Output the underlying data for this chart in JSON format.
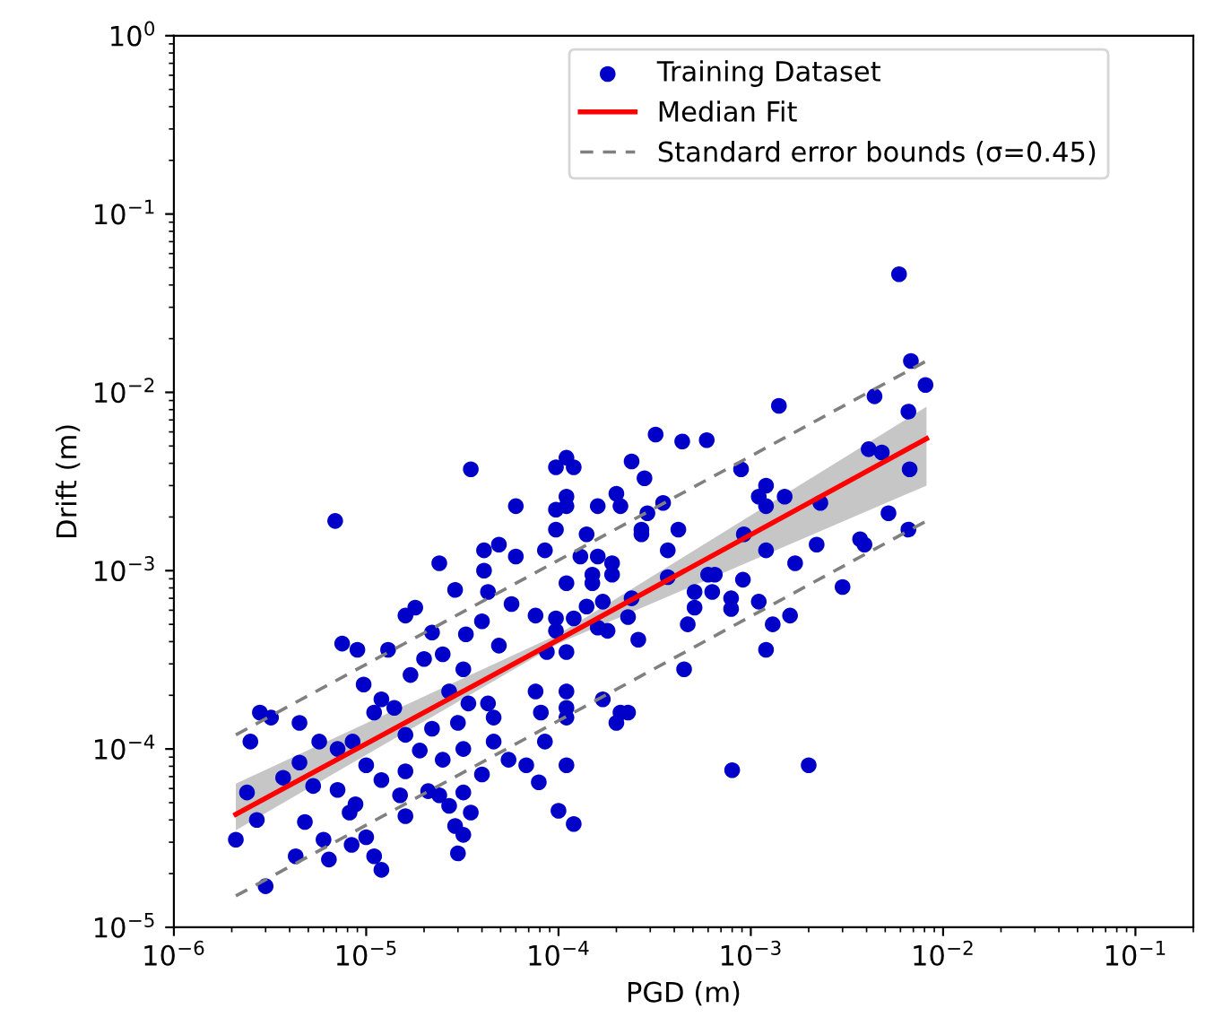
{
  "chart_data": {
    "type": "scatter",
    "xlabel": "PGD (m)",
    "ylabel": "Drift (m)",
    "log": "xy",
    "grid": false,
    "legend": "top right",
    "xlim": [
      1e-06,
      0.2
    ],
    "ylim": [
      1e-05,
      1
    ],
    "xticks": [
      {
        "value": 1e-06,
        "label": "10$^{−6}$"
      },
      {
        "value": 1e-05,
        "label": "10$^{−5}$"
      },
      {
        "value": 0.0001,
        "label": "10$^{−4}$"
      },
      {
        "value": 0.001,
        "label": "10$^{−3}$"
      },
      {
        "value": 0.01,
        "label": "10$^{−2}$"
      },
      {
        "value": 0.1,
        "label": "10$^{−1}$"
      }
    ],
    "yticks": [
      {
        "value": 1e-05,
        "label": "10$^{−5}$"
      },
      {
        "value": 0.0001,
        "label": "10$^{−4}$"
      },
      {
        "value": 0.001,
        "label": "10$^{−3}$"
      },
      {
        "value": 0.01,
        "label": "10$^{−2}$"
      },
      {
        "value": 0.1,
        "label": "10$^{−1}$"
      },
      {
        "value": 1,
        "label": "10$^{0}$"
      }
    ],
    "series": [
      {
        "name": "Training Dataset",
        "marker": "circle",
        "color": "#0000c8",
        "x": [
          3.5e-05,
          6.9e-06,
          6e-05,
          2.4e-05,
          4.1e-05,
          4.9e-05,
          6e-05,
          2.9e-05,
          4.1e-05,
          4.3e-05,
          1.6e-05,
          1.8e-05,
          5.7e-05,
          2.2e-05,
          7.5e-06,
          9e-06,
          1.3e-05,
          2e-05,
          2.5e-05,
          1.7e-05,
          3.3e-05,
          4e-05,
          4.9e-05,
          3.2e-05,
          9.7e-06,
          1.2e-05,
          1.4e-05,
          1.1e-05,
          2.7e-05,
          3.4e-05,
          4.3e-05,
          4.6e-05,
          2.8e-06,
          3.2e-06,
          4.5e-06,
          2.5e-06,
          5.7e-06,
          7.1e-06,
          8.5e-06,
          1.6e-05,
          2.2e-05,
          3e-05,
          1.9e-05,
          2.5e-05,
          3.2e-05,
          4.6e-05,
          1e-05,
          1.6e-05,
          4.5e-06,
          3.7e-06,
          5.3e-06,
          7.1e-06,
          1.2e-05,
          2.4e-06,
          2.7e-06,
          2.1e-06,
          4.8e-06,
          8.8e-06,
          8.2e-06,
          1.5e-05,
          1.6e-05,
          2.1e-05,
          2.4e-05,
          2.7e-05,
          3.2e-05,
          3.5e-05,
          2.9e-05,
          3.2e-05,
          3e-05,
          6e-06,
          8.4e-06,
          1e-05,
          1.1e-05,
          1.2e-05,
          4.3e-06,
          6.4e-06,
          3e-06,
          4e-05,
          5.5e-05,
          6.8e-05,
          0.0014,
          0.00032,
          0.00044,
          0.00059,
          0.00011,
          9.7e-05,
          0.00012,
          0.00024,
          0.00028,
          0.00089,
          0.0012,
          0.0011,
          0.0015,
          0.0012,
          0.0023,
          0.00011,
          0.0002,
          0.00021,
          0.00016,
          9.7e-05,
          0.00011,
          0.00035,
          0.00029,
          0.00027,
          0.00027,
          0.00042,
          9.7e-05,
          0.00014,
          0.00037,
          8.5e-05,
          0.00013,
          0.00016,
          0.00019,
          0.00015,
          0.00019,
          0.00011,
          0.00015,
          0.00037,
          0.00092,
          0.0012,
          0.0017,
          0.0022,
          0.0037,
          0.003,
          0.00091,
          0.0006,
          0.00065,
          0.00051,
          0.00063,
          0.00079,
          0.00079,
          0.0011,
          0.00051,
          0.00047,
          0.0013,
          0.0016,
          0.0012,
          0.00045,
          0.00023,
          0.00026,
          0.00018,
          0.00016,
          0.00012,
          9.7e-05,
          7.6e-05,
          9.7e-05,
          0.00024,
          0.00017,
          0.00014,
          0.00011,
          8.7e-05,
          7.6e-05,
          0.00011,
          0.00017,
          0.00021,
          0.00023,
          0.0002,
          0.00011,
          0.00011,
          8.1e-05,
          8.5e-05,
          0.00011,
          7.9e-05,
          0.0001,
          0.00012,
          0.0008,
          0.002,
          0.0059,
          0.0068,
          0.0081,
          0.0044,
          0.0066,
          0.0041,
          0.0048,
          0.0067,
          0.0052,
          0.0066,
          0.0039
        ],
        "values": [
          0.0037,
          0.0019,
          0.0023,
          0.0011,
          0.0013,
          0.0014,
          0.0012,
          0.00078,
          0.001,
          0.00076,
          0.00056,
          0.00062,
          0.00065,
          0.00045,
          0.00039,
          0.00036,
          0.00036,
          0.00032,
          0.00034,
          0.00026,
          0.00044,
          0.00052,
          0.00038,
          0.00028,
          0.00023,
          0.00019,
          0.00017,
          0.00016,
          0.00021,
          0.00018,
          0.00018,
          0.00015,
          0.00016,
          0.00015,
          0.00014,
          0.00011,
          0.00011,
          0.0001,
          0.00011,
          0.00012,
          0.00013,
          0.00014,
          9.8e-05,
          8.7e-05,
          0.0001,
          0.00011,
          8.1e-05,
          7.5e-05,
          8.4e-05,
          6.9e-05,
          6.2e-05,
          5.9e-05,
          6.7e-05,
          5.7e-05,
          4e-05,
          3.1e-05,
          3.9e-05,
          4.9e-05,
          4.4e-05,
          5.5e-05,
          4.2e-05,
          5.8e-05,
          5.5e-05,
          4.8e-05,
          5.7e-05,
          4.4e-05,
          3.7e-05,
          3.3e-05,
          2.6e-05,
          3.1e-05,
          2.9e-05,
          3.2e-05,
          2.5e-05,
          2.1e-05,
          2.5e-05,
          2.4e-05,
          1.7e-05,
          7.2e-05,
          8.7e-05,
          8.1e-05,
          0.0084,
          0.0058,
          0.0053,
          0.0054,
          0.0043,
          0.0038,
          0.0038,
          0.0041,
          0.0033,
          0.0037,
          0.003,
          0.0026,
          0.0026,
          0.0023,
          0.0024,
          0.0026,
          0.0027,
          0.0023,
          0.0023,
          0.0022,
          0.0023,
          0.0024,
          0.0021,
          0.0017,
          0.0016,
          0.0017,
          0.0017,
          0.0016,
          0.0013,
          0.0013,
          0.0012,
          0.0012,
          0.0011,
          0.00095,
          0.00095,
          0.00085,
          0.00085,
          0.00092,
          0.0016,
          0.0013,
          0.0011,
          0.0014,
          0.0015,
          0.00081,
          0.00089,
          0.00095,
          0.00095,
          0.00076,
          0.00076,
          0.0007,
          0.00061,
          0.00067,
          0.00062,
          0.0005,
          0.0005,
          0.00056,
          0.00036,
          0.00028,
          0.00055,
          0.00041,
          0.00046,
          0.00048,
          0.00054,
          0.00054,
          0.00056,
          0.00046,
          0.0007,
          0.00067,
          0.00063,
          0.00035,
          0.00035,
          0.00021,
          0.00021,
          0.00019,
          0.00016,
          0.00016,
          0.00014,
          0.00017,
          0.00015,
          0.00016,
          0.00011,
          8.1e-05,
          6.5e-05,
          4.5e-05,
          3.8e-05,
          7.6e-05,
          8.1e-05,
          0.046,
          0.015,
          0.011,
          0.0095,
          0.0078,
          0.0048,
          0.0046,
          0.0037,
          0.0021,
          0.0017,
          0.0014
        ]
      },
      {
        "name": "Median Fit",
        "type": "line",
        "color": "#ff0000",
        "x": [
          2.1e-06,
          0.0001,
          0.0082
        ],
        "values": [
          4.3e-05,
          0.00041,
          0.0055
        ],
        "lower": [
          3.5e-05,
          0.00039,
          0.003
        ],
        "upper": [
          6.4e-05,
          0.00044,
          0.0083
        ]
      },
      {
        "name": "Standard error bounds (σ=0.45)",
        "type": "line",
        "line_style": "dashed",
        "color": "#808080",
        "x": [
          2.1e-06,
          0.0082
        ],
        "values": [
          0.00012,
          0.015
        ]
      },
      {
        "type": "line",
        "line_style": "dashed",
        "color": "#808080",
        "x": [
          2.1e-06,
          0.0082
        ],
        "values": [
          1.5e-05,
          0.0019
        ]
      }
    ]
  }
}
